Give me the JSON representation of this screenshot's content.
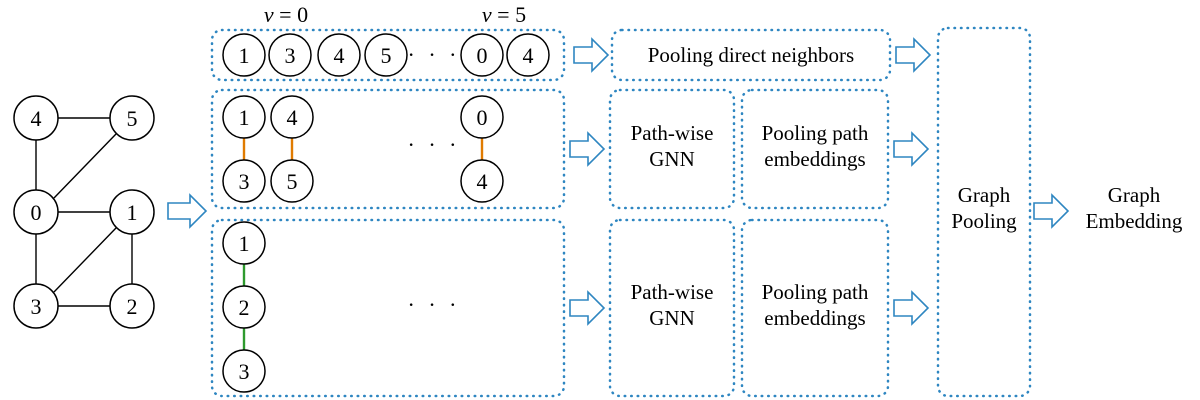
{
  "graph": {
    "nodes": [
      "4",
      "5",
      "0",
      "1",
      "3",
      "2"
    ]
  },
  "top_row": {
    "v_label_left": {
      "var": "v",
      "eq": " = 0"
    },
    "v_label_right": {
      "var": "v",
      "eq": " = 5"
    },
    "nodes": [
      "1",
      "3",
      "4",
      "5",
      "0",
      "4"
    ],
    "ellipsis": "· · ·"
  },
  "middle_block": {
    "pairs": [
      [
        "1",
        "3"
      ],
      [
        "4",
        "5"
      ],
      [
        "0",
        "4"
      ]
    ],
    "ellipsis": "· · ·"
  },
  "bottom_block": {
    "chain": [
      "1",
      "2",
      "3"
    ],
    "ellipsis": "· · ·"
  },
  "labels": {
    "pooling_direct": "Pooling direct neighbors",
    "pathwise_gnn_line1": "Path-wise",
    "pathwise_gnn_line2": "GNN",
    "pooling_path_line1": "Pooling path",
    "pooling_path_line2": "embeddings",
    "graph_pooling_line1": "Graph",
    "graph_pooling_line2": "Pooling",
    "graph_embedding_line1": "Graph",
    "graph_embedding_line2": "Embedding"
  },
  "colors": {
    "box_border": "#2e86c1",
    "arrow_stroke": "#2e86c1",
    "length2_path_edge": "#e07b00",
    "length3_path_edge": "#2e9a2e"
  }
}
